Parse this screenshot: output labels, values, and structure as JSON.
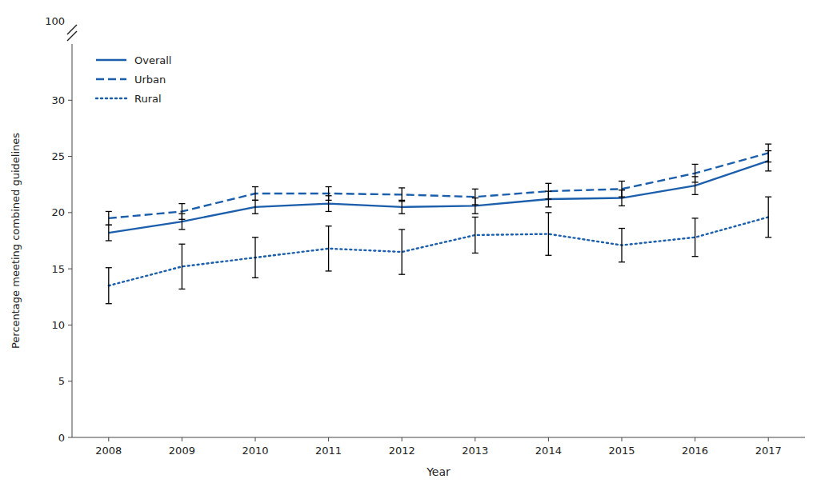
{
  "chart_data": {
    "type": "line",
    "x_label": "Year",
    "y_label": "Percentage meeting combined guidelines",
    "x": [
      2008,
      2009,
      2010,
      2011,
      2012,
      2013,
      2014,
      2015,
      2016,
      2017
    ],
    "series": [
      {
        "name": "Overall",
        "color": "#1b5fac",
        "line_style": "solid",
        "values": [
          18.2,
          19.2,
          20.5,
          20.8,
          20.5,
          20.6,
          21.2,
          21.3,
          22.4,
          24.6
        ],
        "ci_lower": [
          17.5,
          18.5,
          19.9,
          20.1,
          19.9,
          19.9,
          20.5,
          20.6,
          21.6,
          23.7
        ],
        "ci_upper": [
          18.9,
          19.9,
          21.1,
          21.5,
          21.1,
          21.3,
          21.9,
          22.0,
          23.2,
          25.5
        ]
      },
      {
        "name": "Urban",
        "color": "#1b5fac",
        "line_style": "dashed",
        "values": [
          19.5,
          20.1,
          21.7,
          21.7,
          21.6,
          21.4,
          21.9,
          22.1,
          23.5,
          25.3
        ],
        "ci_lower": [
          18.9,
          19.4,
          21.1,
          21.1,
          21.0,
          20.7,
          21.2,
          21.4,
          22.7,
          24.5
        ],
        "ci_upper": [
          20.1,
          20.8,
          22.3,
          22.3,
          22.2,
          22.1,
          22.6,
          22.8,
          24.3,
          26.1
        ]
      },
      {
        "name": "Rural",
        "color": "#1b5fac",
        "line_style": "dotted",
        "values": [
          13.5,
          15.2,
          16.0,
          16.8,
          16.5,
          18.0,
          18.1,
          17.1,
          17.8,
          19.6
        ],
        "ci_lower": [
          11.9,
          13.2,
          14.2,
          14.8,
          14.5,
          16.4,
          16.2,
          15.6,
          16.1,
          17.8
        ],
        "ci_upper": [
          15.1,
          17.2,
          17.8,
          18.8,
          18.5,
          19.6,
          20.0,
          18.6,
          19.5,
          21.4
        ]
      }
    ],
    "xlim": [
      2007.5,
      2017.5
    ],
    "xticks": [
      2008,
      2009,
      2010,
      2011,
      2012,
      2013,
      2014,
      2015,
      2016,
      2017
    ],
    "ylim": [
      0,
      35
    ],
    "yticks": [
      0,
      5,
      10,
      15,
      20,
      25,
      30
    ],
    "annotations": [
      "100"
    ],
    "legend": "upper left",
    "grid": false
  }
}
